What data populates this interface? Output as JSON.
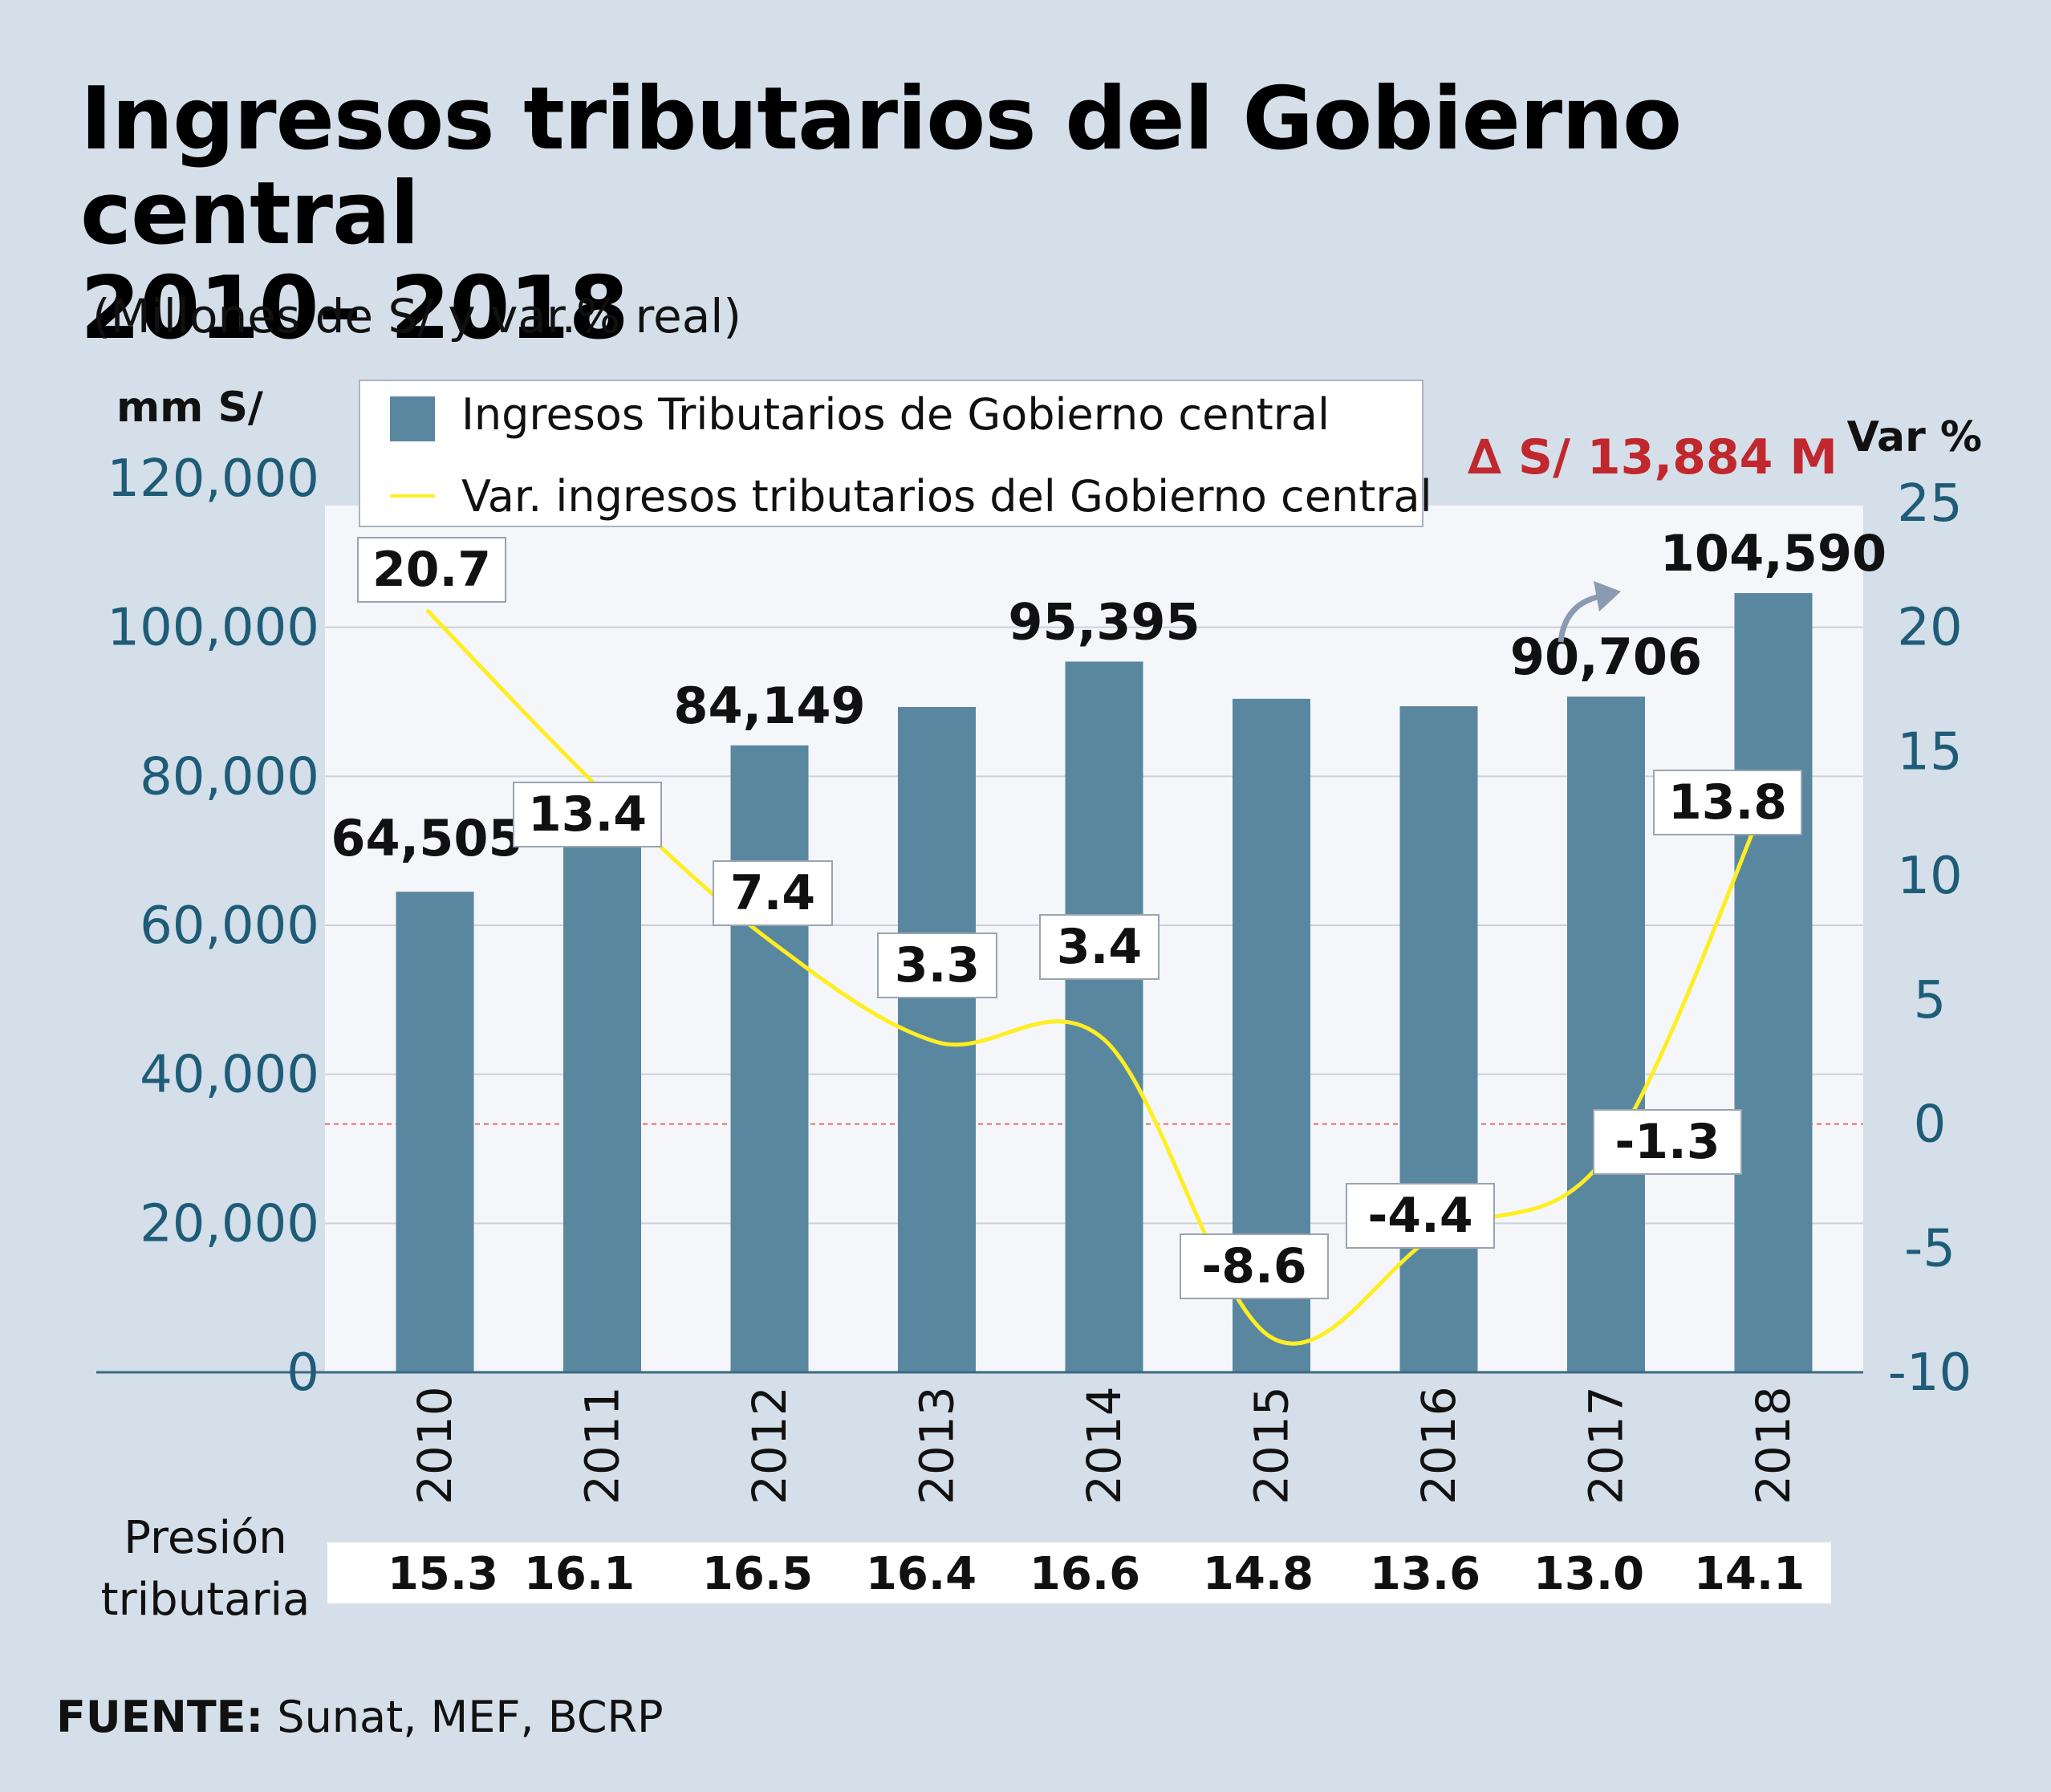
{
  "title_line1": "Ingresos tributarios del Gobierno central",
  "title_line2": "2010– 2018",
  "subtitle": "(Millones de S/ y var.% real)",
  "left_axis_unit": "mm S/",
  "right_axis_unit": "Var %",
  "delta_annotation": "∆ S/ 13,884 M",
  "pressure_label_line1": "Presión",
  "pressure_label_line2": "tributaria",
  "source_label": "FUENTE:",
  "source_text": " Sunat, MEF, BCRP",
  "colors": {
    "bar": "#5a87a0",
    "line": "#ffee22",
    "axis_tick": "#1e5c78",
    "delta": "#c0282d",
    "background": "#d5dfe9",
    "plot_bg": "#f4f6fa"
  },
  "chart_data": {
    "type": "bar",
    "categories": [
      "2010",
      "2011",
      "2012",
      "2013",
      "2014",
      "2015",
      "2016",
      "2017",
      "2018"
    ],
    "series": [
      {
        "name": "Ingresos Tributarios de Gobierno central",
        "type": "bar",
        "axis": "left",
        "values": [
          64505,
          70500,
          84149,
          89300,
          95395,
          90400,
          89400,
          90706,
          104590
        ],
        "labels": [
          "64,505",
          "",
          "84,149",
          "",
          "95,395",
          "",
          "",
          "90,706",
          "104,590"
        ]
      },
      {
        "name": "Var. ingresos tributarios del Gobierno central",
        "type": "line",
        "axis": "right",
        "values": [
          20.7,
          13.4,
          7.4,
          3.3,
          3.4,
          -8.6,
          -4.4,
          -1.3,
          13.8
        ],
        "labels": [
          "20.7",
          "13.4",
          "7.4",
          "3.3",
          "3.4",
          "-8.6",
          "-4.4",
          "-1.3",
          "13.8"
        ]
      }
    ],
    "left_ylim": [
      0,
      120000
    ],
    "left_ticks": [
      "0",
      "20,000",
      "40,000",
      "60,000",
      "80,000",
      "100,000",
      "120,000"
    ],
    "left_tick_values": [
      0,
      20000,
      40000,
      60000,
      80000,
      100000,
      120000
    ],
    "right_ylim": [
      -10,
      25
    ],
    "right_ticks": [
      "-10",
      "-5",
      "0",
      "5",
      "10",
      "15",
      "20",
      "25"
    ],
    "right_tick_values": [
      -10,
      -5,
      0,
      5,
      10,
      15,
      20,
      25
    ],
    "presion_tributaria": [
      "15.3",
      "16.1",
      "16.5",
      "16.4",
      "16.6",
      "14.8",
      "13.6",
      "13.0",
      "14.1"
    ],
    "grid": true,
    "legend_position": "top"
  }
}
